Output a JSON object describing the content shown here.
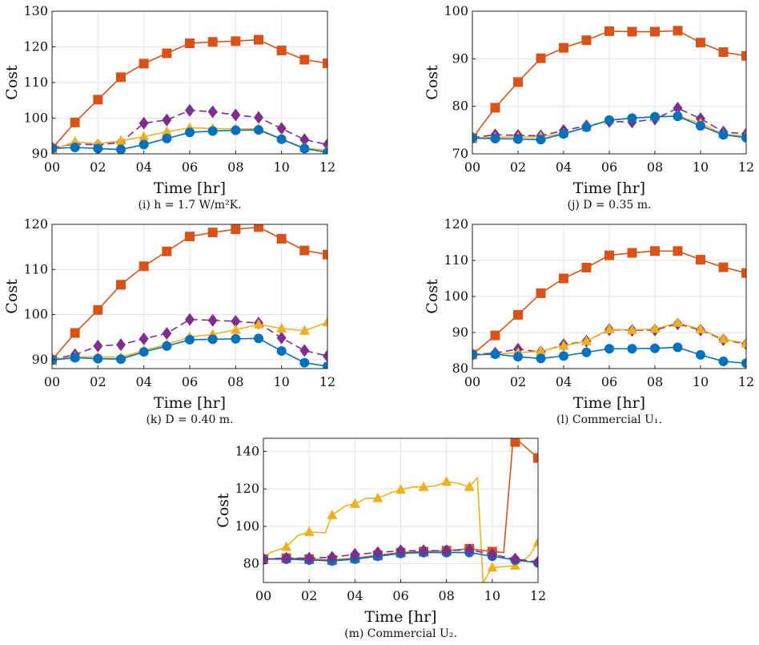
{
  "colors": {
    "blue": "#0072BD",
    "orange": "#D95319",
    "yellow": "#EDB120",
    "purple": "#7E2F8E"
  },
  "chart_data": [
    {
      "id": "i",
      "type": "line",
      "caption": "(i) h = 1.7 W/m²K.",
      "xlabel": "Time [hr]",
      "ylabel": "Cost",
      "x": [
        0,
        1,
        2,
        3,
        4,
        5,
        6,
        7,
        8,
        9,
        10,
        11,
        12
      ],
      "xtick_labels": [
        "00",
        "02",
        "04",
        "06",
        "08",
        "10",
        "12"
      ],
      "ylim": [
        90,
        130
      ],
      "yticks": [
        90,
        100,
        110,
        120,
        130
      ],
      "grid": true,
      "series": [
        {
          "color": "orange",
          "marker": "square",
          "style": "solid",
          "values": [
            91.5,
            98.8,
            105.2,
            111.5,
            115.3,
            118.2,
            121.0,
            121.4,
            121.6,
            122.0,
            119.0,
            116.4,
            115.4
          ]
        },
        {
          "color": "purple",
          "marker": "diamond",
          "style": "dashed",
          "values": [
            91.7,
            92.8,
            92.5,
            93.2,
            98.6,
            99.5,
            102.2,
            101.8,
            100.9,
            100.2,
            97.1,
            94.0,
            92.6
          ]
        },
        {
          "color": "yellow",
          "marker": "triangle",
          "style": "solid",
          "values": [
            91.0,
            93.4,
            92.8,
            93.7,
            94.8,
            96.2,
            97.3,
            97.1,
            97.0,
            97.0,
            94.2,
            91.6,
            91.0
          ]
        },
        {
          "color": "blue",
          "marker": "circle",
          "style": "solid",
          "values": [
            91.5,
            91.8,
            91.5,
            91.2,
            92.6,
            94.3,
            96.0,
            96.4,
            96.6,
            96.7,
            94.1,
            91.5,
            90.4
          ]
        }
      ]
    },
    {
      "id": "j",
      "type": "line",
      "caption": "(j) D = 0.35 m.",
      "xlabel": "Time [hr]",
      "ylabel": "Cost",
      "x": [
        0,
        1,
        2,
        3,
        4,
        5,
        6,
        7,
        8,
        9,
        10,
        11,
        12
      ],
      "xtick_labels": [
        "00",
        "02",
        "04",
        "06",
        "08",
        "10",
        "12"
      ],
      "ylim": [
        70,
        100
      ],
      "yticks": [
        70,
        80,
        90,
        100
      ],
      "grid": true,
      "series": [
        {
          "color": "orange",
          "marker": "square",
          "style": "solid",
          "values": [
            73.3,
            79.7,
            85.1,
            90.1,
            92.3,
            93.9,
            95.8,
            95.7,
            95.7,
            95.9,
            93.4,
            91.4,
            90.6
          ]
        },
        {
          "color": "purple",
          "marker": "diamond",
          "style": "dashed",
          "values": [
            73.4,
            74.0,
            73.9,
            73.8,
            74.9,
            75.9,
            76.8,
            76.7,
            77.3,
            79.6,
            77.4,
            74.6,
            74.2
          ]
        },
        {
          "color": "yellow",
          "marker": "triangle",
          "style": "solid",
          "values": [
            73.3,
            73.5,
            73.5,
            73.6,
            74.3,
            75.6,
            77.0,
            77.6,
            77.7,
            78.0,
            76.4,
            74.1,
            73.8
          ]
        },
        {
          "color": "blue",
          "marker": "circle",
          "style": "solid",
          "values": [
            73.3,
            73.2,
            73.1,
            73.0,
            74.2,
            75.6,
            77.1,
            77.5,
            77.8,
            77.9,
            75.9,
            74.0,
            73.4
          ]
        }
      ]
    },
    {
      "id": "k",
      "type": "line",
      "caption": "(k) D = 0.40 m.",
      "xlabel": "Time [hr]",
      "ylabel": "Cost",
      "x": [
        0,
        1,
        2,
        3,
        4,
        5,
        6,
        7,
        8,
        9,
        10,
        11,
        12
      ],
      "xtick_labels": [
        "00",
        "02",
        "04",
        "06",
        "08",
        "10",
        "12"
      ],
      "ylim": [
        88,
        120
      ],
      "yticks": [
        90,
        100,
        110,
        120
      ],
      "grid": true,
      "series": [
        {
          "color": "orange",
          "marker": "square",
          "style": "solid",
          "values": [
            89.9,
            95.9,
            101.0,
            106.6,
            110.7,
            114.0,
            117.3,
            118.2,
            118.9,
            119.4,
            116.8,
            114.2,
            113.3
          ]
        },
        {
          "color": "purple",
          "marker": "diamond",
          "style": "dashed",
          "values": [
            90.0,
            91.1,
            93.0,
            93.3,
            94.6,
            95.8,
            98.9,
            98.7,
            98.5,
            98.1,
            94.8,
            92.0,
            90.8
          ]
        },
        {
          "color": "yellow",
          "marker": "triangle",
          "style": "solid",
          "values": [
            90.0,
            90.6,
            90.6,
            90.5,
            92.0,
            93.4,
            95.0,
            95.6,
            96.6,
            97.8,
            96.9,
            96.4,
            98.3
          ]
        },
        {
          "color": "blue",
          "marker": "circle",
          "style": "solid",
          "values": [
            89.9,
            90.4,
            90.2,
            90.1,
            91.7,
            93.0,
            94.4,
            94.5,
            94.6,
            94.7,
            91.9,
            89.3,
            88.5
          ]
        }
      ]
    },
    {
      "id": "l",
      "type": "line",
      "caption": "(l) Commercial U₁.",
      "xlabel": "Time [hr]",
      "ylabel": "Cost",
      "x": [
        0,
        1,
        2,
        3,
        4,
        5,
        6,
        7,
        8,
        9,
        10,
        11,
        12
      ],
      "xtick_labels": [
        "00",
        "02",
        "04",
        "06",
        "08",
        "10",
        "12"
      ],
      "ylim": [
        80,
        120
      ],
      "yticks": [
        80,
        90,
        100,
        110,
        120
      ],
      "grid": true,
      "series": [
        {
          "color": "orange",
          "marker": "square",
          "style": "solid",
          "values": [
            83.9,
            89.2,
            94.9,
            100.9,
            105.0,
            108.0,
            111.4,
            112.1,
            112.6,
            112.6,
            110.2,
            108.1,
            106.5
          ]
        },
        {
          "color": "purple",
          "marker": "diamond",
          "style": "dashed",
          "values": [
            83.9,
            84.3,
            85.4,
            84.6,
            86.6,
            87.6,
            90.8,
            90.6,
            90.7,
            92.4,
            90.7,
            88.0,
            86.8
          ]
        },
        {
          "color": "yellow",
          "marker": "triangle",
          "style": "solid",
          "values": [
            83.8,
            84.0,
            84.4,
            84.8,
            86.3,
            87.6,
            90.9,
            90.7,
            91.0,
            92.7,
            90.9,
            88.2,
            87.0
          ]
        },
        {
          "color": "blue",
          "marker": "circle",
          "style": "solid",
          "values": [
            83.8,
            84.0,
            83.3,
            82.8,
            83.5,
            84.5,
            85.5,
            85.5,
            85.6,
            85.9,
            83.8,
            82.0,
            81.5
          ]
        }
      ]
    },
    {
      "id": "m",
      "type": "line",
      "caption": "(m) Commercial U₂.",
      "xlabel": "Time [hr]",
      "ylabel": "Cost",
      "xlim": [
        0,
        12
      ],
      "xtick_labels": [
        "00",
        "02",
        "04",
        "06",
        "08",
        "10",
        "12"
      ],
      "ylim": [
        70,
        147
      ],
      "yticks": [
        80,
        100,
        120,
        140
      ],
      "grid": true,
      "series": [
        {
          "color": "yellow",
          "marker": "triangle",
          "style": "solid",
          "line": [
            [
              0,
              82.5
            ],
            [
              0.3,
              86
            ],
            [
              1,
              89
            ],
            [
              1.5,
              95
            ],
            [
              2,
              97
            ],
            [
              2.7,
              96.5
            ],
            [
              3,
              106
            ],
            [
              3.6,
              111
            ],
            [
              4,
              112
            ],
            [
              4.5,
              115
            ],
            [
              5,
              115
            ],
            [
              5.6,
              118
            ],
            [
              6,
              119.5
            ],
            [
              6.5,
              121
            ],
            [
              7,
              121
            ],
            [
              7.5,
              121.5
            ],
            [
              8,
              123.8
            ],
            [
              8.5,
              123
            ],
            [
              9,
              121
            ],
            [
              9.35,
              126
            ],
            [
              9.6,
              70
            ],
            [
              10,
              78
            ],
            [
              11,
              79
            ],
            [
              11.6,
              84
            ],
            [
              12,
              91.5
            ]
          ],
          "marker_x": [
            0,
            1,
            2,
            3,
            4,
            5,
            6,
            7,
            8,
            9,
            10,
            11,
            12
          ],
          "marker_y": [
            82.5,
            89,
            97,
            106,
            112,
            115,
            119.5,
            121,
            123.8,
            121,
            78,
            79,
            91.5
          ]
        },
        {
          "color": "orange",
          "marker": "square",
          "style": "solid",
          "line": [
            [
              0,
              82.5
            ],
            [
              1,
              83
            ],
            [
              2,
              82.5
            ],
            [
              3,
              82
            ],
            [
              4,
              83
            ],
            [
              5,
              84.5
            ],
            [
              6,
              86
            ],
            [
              7,
              86.5
            ],
            [
              8,
              87
            ],
            [
              9,
              88
            ],
            [
              10,
              86.5
            ],
            [
              10.5,
              86
            ],
            [
              10.9,
              145
            ],
            [
              11.2,
              145
            ],
            [
              12,
              136.5
            ]
          ],
          "marker_x": [
            0,
            1,
            2,
            3,
            4,
            5,
            6,
            7,
            8,
            9,
            10,
            11,
            12
          ],
          "marker_y": [
            82.5,
            83,
            82.5,
            82,
            83,
            84.5,
            86,
            86.5,
            87,
            88,
            86.5,
            145,
            136.5
          ]
        },
        {
          "color": "blue",
          "marker": "circle",
          "style": "solid",
          "line": [
            [
              0,
              82.5
            ],
            [
              1,
              82.5
            ],
            [
              2,
              82
            ],
            [
              3,
              81.5
            ],
            [
              4,
              82.5
            ],
            [
              5,
              84
            ],
            [
              6,
              85.5
            ],
            [
              7,
              86
            ],
            [
              8,
              86
            ],
            [
              9,
              86
            ],
            [
              10,
              84
            ],
            [
              11,
              82
            ],
            [
              12,
              80.5
            ]
          ],
          "marker_x": [
            0,
            1,
            2,
            3,
            4,
            5,
            6,
            7,
            8,
            9,
            10,
            11,
            12
          ],
          "marker_y": [
            82.5,
            82.5,
            82,
            81.5,
            82.5,
            84,
            85.5,
            86,
            86,
            86,
            84,
            82,
            80.5
          ]
        },
        {
          "color": "purple",
          "marker": "diamond",
          "style": "dashed",
          "line": [
            [
              0,
              82.5
            ],
            [
              1,
              83
            ],
            [
              2,
              83
            ],
            [
              3,
              83.5
            ],
            [
              4,
              85
            ],
            [
              5,
              86
            ],
            [
              6,
              87
            ],
            [
              7,
              87
            ],
            [
              8,
              87
            ],
            [
              9,
              87.5
            ],
            [
              10,
              85
            ],
            [
              11,
              82.5
            ],
            [
              12,
              81
            ]
          ],
          "marker_x": [
            0,
            1,
            2,
            3,
            4,
            5,
            6,
            7,
            8,
            9,
            10,
            11,
            12
          ],
          "marker_y": [
            82.5,
            83,
            83,
            83.5,
            85,
            86,
            87,
            87,
            87,
            87.5,
            85,
            82.5,
            81
          ]
        }
      ]
    }
  ]
}
